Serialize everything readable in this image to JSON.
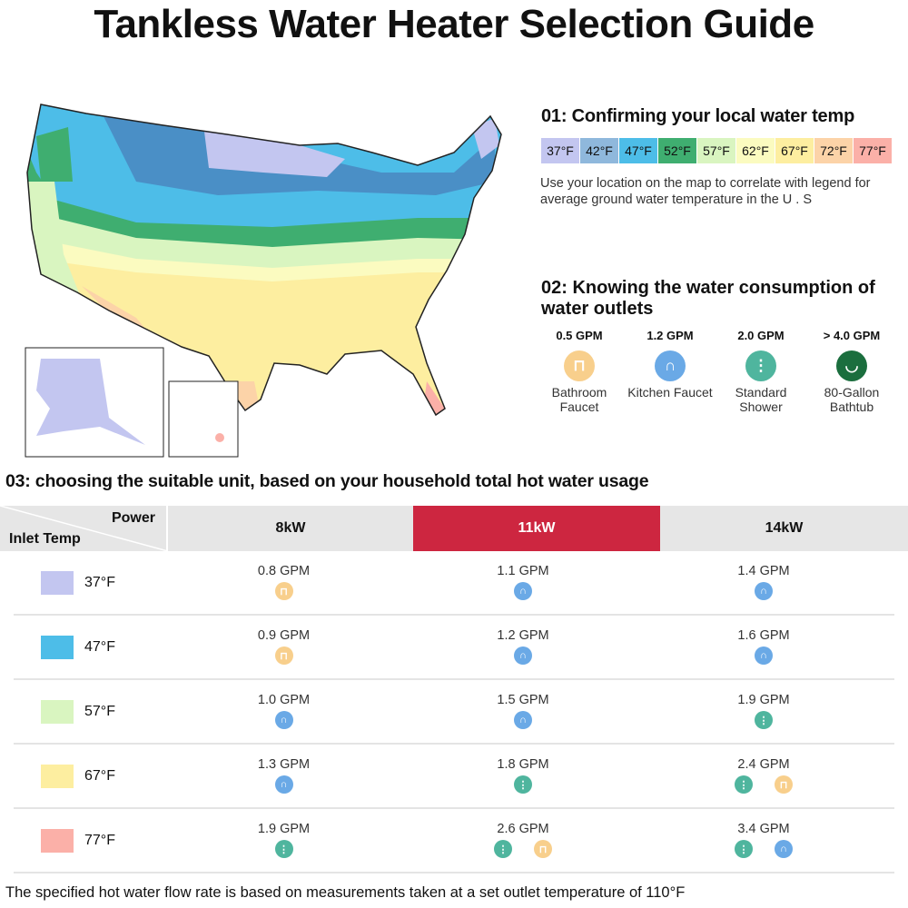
{
  "title": "Tankless Water Heater Selection Guide",
  "colors": {
    "t37": "#c3c6f0",
    "t42": "#8fb8dc",
    "t47": "#4dbde8",
    "t52": "#3fae70",
    "t57": "#d9f5c0",
    "t62": "#fbfbc0",
    "t67": "#fdeea0",
    "t72": "#fcd3a8",
    "t77": "#fbb0a8",
    "bathroom": "#f8cf8c",
    "kitchen": "#6aa9e6",
    "shower": "#4fb59e",
    "bathtub": "#1b6e3e",
    "highlight": "#cd2640"
  },
  "step1": {
    "heading": "01:  Confirming your local water temp",
    "legend": [
      {
        "label": "37°F",
        "color": "#c3c6f0"
      },
      {
        "label": "42°F",
        "color": "#8fb8dc"
      },
      {
        "label": "47°F",
        "color": "#4dbde8"
      },
      {
        "label": "52°F",
        "color": "#3fae70"
      },
      {
        "label": "57°F",
        "color": "#d9f5c0"
      },
      {
        "label": "62°F",
        "color": "#fbfbc0"
      },
      {
        "label": "67°F",
        "color": "#fdeea0"
      },
      {
        "label": "72°F",
        "color": "#fcd3a8"
      },
      {
        "label": "77°F",
        "color": "#fbb0a8"
      }
    ],
    "description": "Use your location on the map to correlate with legend for average ground water temperature in the U . S"
  },
  "step2": {
    "heading": "02:  Knowing the water consumption of water outlets",
    "outlets": [
      {
        "gpm": "0.5 GPM",
        "label": "Bathroom Faucet",
        "icon": "bathroom-faucet-icon",
        "type": "bathroom"
      },
      {
        "gpm": "1.2 GPM",
        "label": "Kitchen Faucet",
        "icon": "kitchen-faucet-icon",
        "type": "kitchen"
      },
      {
        "gpm": "2.0 GPM",
        "label": "Standard Shower",
        "icon": "shower-icon",
        "type": "shower"
      },
      {
        "gpm": "> 4.0 GPM",
        "label": "80-Gallon Bathtub",
        "icon": "bathtub-icon",
        "type": "bathtub"
      }
    ]
  },
  "step3": {
    "heading": "03:  choosing the suitable unit, based on your household total hot water usage",
    "header": {
      "power": "Power",
      "inlet": "Inlet Temp",
      "columns": [
        "8kW",
        "11kW",
        "14kW"
      ],
      "highlighted": "11kW"
    },
    "rows": [
      {
        "temp": "37°F",
        "color": "#c3c6f0",
        "cells": [
          {
            "gpm": "0.8 GPM",
            "icons": [
              "bathroom"
            ]
          },
          {
            "gpm": "1.1 GPM",
            "icons": [
              "kitchen"
            ]
          },
          {
            "gpm": "1.4 GPM",
            "icons": [
              "kitchen"
            ]
          }
        ]
      },
      {
        "temp": "47°F",
        "color": "#4dbde8",
        "cells": [
          {
            "gpm": "0.9 GPM",
            "icons": [
              "bathroom"
            ]
          },
          {
            "gpm": "1.2 GPM",
            "icons": [
              "kitchen"
            ]
          },
          {
            "gpm": "1.6 GPM",
            "icons": [
              "kitchen"
            ]
          }
        ]
      },
      {
        "temp": "57°F",
        "color": "#d9f5c0",
        "cells": [
          {
            "gpm": "1.0 GPM",
            "icons": [
              "kitchen"
            ]
          },
          {
            "gpm": "1.5 GPM",
            "icons": [
              "kitchen"
            ]
          },
          {
            "gpm": "1.9 GPM",
            "icons": [
              "shower"
            ]
          }
        ]
      },
      {
        "temp": "67°F",
        "color": "#fdeea0",
        "cells": [
          {
            "gpm": "1.3 GPM",
            "icons": [
              "kitchen"
            ]
          },
          {
            "gpm": "1.8 GPM",
            "icons": [
              "shower"
            ]
          },
          {
            "gpm": "2.4 GPM",
            "icons": [
              "shower",
              "bathroom"
            ]
          }
        ]
      },
      {
        "temp": "77°F",
        "color": "#fbb0a8",
        "cells": [
          {
            "gpm": "1.9 GPM",
            "icons": [
              "shower"
            ]
          },
          {
            "gpm": "2.6 GPM",
            "icons": [
              "shower",
              "bathroom"
            ]
          },
          {
            "gpm": "3.4 GPM",
            "icons": [
              "shower",
              "kitchen"
            ]
          }
        ]
      }
    ]
  },
  "footnote": "The specified hot water flow rate is based on measurements taken at a set outlet temperature of 110°F"
}
